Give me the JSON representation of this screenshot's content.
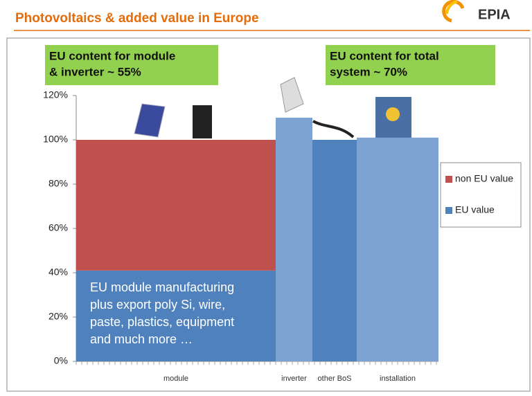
{
  "chart_data": {
    "type": "bar",
    "stacked": true,
    "title": "Photovoltaics & added value in Europe",
    "logo": "EPIA",
    "categories": [
      "module",
      "inverter",
      "other BoS",
      "installation"
    ],
    "series": [
      {
        "name": "EU value",
        "color": "#4f81bd",
        "point_colors": [
          "#4f81bd",
          "#7da3d3",
          "#4f81bd",
          "#7da3d3"
        ],
        "values": [
          41,
          110,
          100,
          101
        ]
      },
      {
        "name": "non EU value",
        "color": "#c0504d",
        "values": [
          59,
          null,
          null,
          null
        ]
      }
    ],
    "ylim": [
      0,
      120
    ],
    "yticks": [
      {
        "value": 0,
        "label": "0%"
      },
      {
        "value": 20,
        "label": "20%"
      },
      {
        "value": 40,
        "label": "40%"
      },
      {
        "value": 60,
        "label": "60%"
      },
      {
        "value": 80,
        "label": "80%"
      },
      {
        "value": 100,
        "label": "100%"
      },
      {
        "value": 120,
        "label": "120%"
      }
    ],
    "legend": "right",
    "callouts": [
      {
        "lines": [
          "EU content for module",
          "& inverter ~ 55%"
        ]
      },
      {
        "lines": [
          "EU content for total",
          "system ~ 70%"
        ]
      }
    ],
    "annotation": {
      "lines": [
        "EU module manufacturing",
        "plus export poly Si, wire,",
        "paste, plastics, equipment",
        "and much more …"
      ]
    }
  }
}
